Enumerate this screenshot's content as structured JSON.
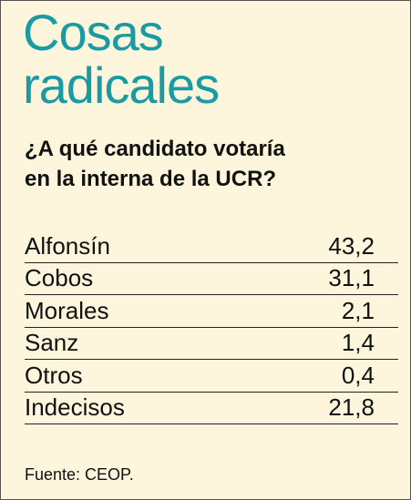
{
  "header": {
    "title": [
      "Cosas",
      "radicales"
    ],
    "question": [
      "¿A qué candidato votaría",
      "en la interna de la UCR?"
    ]
  },
  "table": {
    "rows": [
      [
        "Alfonsín",
        "43,2"
      ],
      [
        "Cobos",
        "31,1"
      ],
      [
        "Morales",
        "2,1"
      ],
      [
        "Sanz",
        "1,4"
      ],
      [
        "Otros",
        "0,4"
      ],
      [
        "Indecisos",
        "21,8"
      ]
    ]
  },
  "footer": {
    "source": "Fuente: CEOP."
  }
}
